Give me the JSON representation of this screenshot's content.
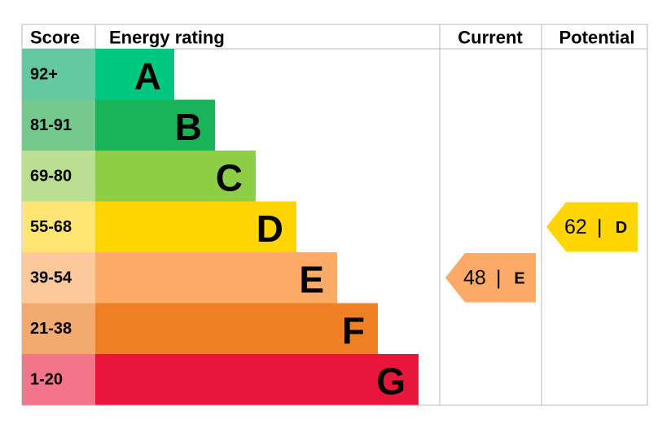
{
  "header": {
    "score": "Score",
    "rating": "Energy rating",
    "current": "Current",
    "potential": "Potential"
  },
  "rows": [
    {
      "score": "92+",
      "band": "A",
      "color": "#00c781",
      "score_color": "#64c8a0"
    },
    {
      "score": "81-91",
      "band": "B",
      "color": "#19b459",
      "score_color": "#75c98e"
    },
    {
      "score": "69-80",
      "band": "C",
      "color": "#8dce46",
      "score_color": "#b8e08e"
    },
    {
      "score": "55-68",
      "band": "D",
      "color": "#ffd500",
      "score_color": "#ffe672"
    },
    {
      "score": "39-54",
      "band": "E",
      "color": "#fcaa65",
      "score_color": "#fdc99b"
    },
    {
      "score": "21-38",
      "band": "F",
      "color": "#ef8023",
      "score_color": "#f3aa6f"
    },
    {
      "score": "1-20",
      "band": "G",
      "color": "#e9153b",
      "score_color": "#f2758a"
    }
  ],
  "current": {
    "value": 48,
    "separator": "|",
    "band": "E"
  },
  "potential": {
    "value": 62,
    "separator": "|",
    "band": "D"
  }
}
